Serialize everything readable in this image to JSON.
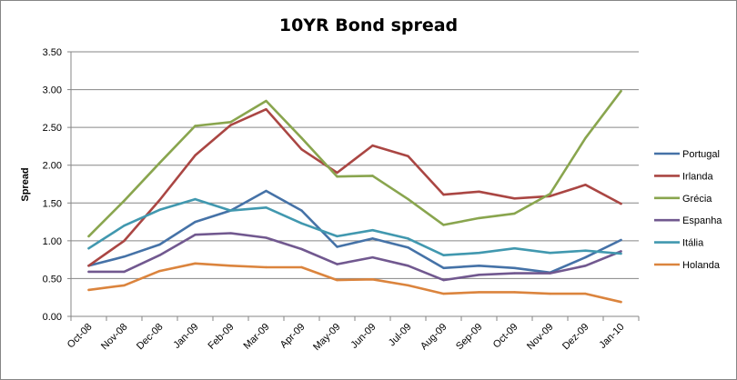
{
  "chart_data": {
    "type": "line",
    "title": "10YR Bond spread",
    "xlabel": "",
    "ylabel": "Spread",
    "ylim": [
      0,
      3.5
    ],
    "yticks": [
      "0.00",
      "0.50",
      "1.00",
      "1.50",
      "2.00",
      "2.50",
      "3.00",
      "3.50"
    ],
    "grid": true,
    "legend": "right",
    "categories": [
      "Oct-08",
      "Nov-08",
      "Dec-08",
      "Jan-09",
      "Feb-09",
      "Mar-09",
      "Apr-09",
      "May-09",
      "Jun-09",
      "Jul-09",
      "Aug-09",
      "Sep-09",
      "Oct-09",
      "Nov-09",
      "Dez-09",
      "Jan-10"
    ],
    "series": [
      {
        "name": "Portugal",
        "color": "#4572A7",
        "values": [
          0.67,
          0.79,
          0.95,
          1.25,
          1.4,
          1.66,
          1.4,
          0.92,
          1.03,
          0.91,
          0.64,
          0.67,
          0.64,
          0.58,
          0.78,
          1.01
        ]
      },
      {
        "name": "Irlanda",
        "color": "#AA4643",
        "values": [
          0.67,
          1.0,
          1.54,
          2.13,
          2.53,
          2.74,
          2.21,
          1.9,
          2.26,
          2.12,
          1.61,
          1.65,
          1.56,
          1.59,
          1.74,
          1.49
        ]
      },
      {
        "name": "Grécia",
        "color": "#89A54E",
        "values": [
          1.06,
          1.53,
          2.03,
          2.52,
          2.57,
          2.85,
          2.36,
          1.85,
          1.86,
          1.55,
          1.21,
          1.3,
          1.36,
          1.62,
          2.36,
          2.98
        ]
      },
      {
        "name": "Espanha",
        "color": "#71588F",
        "values": [
          0.59,
          0.59,
          0.81,
          1.08,
          1.1,
          1.04,
          0.89,
          0.69,
          0.78,
          0.67,
          0.48,
          0.55,
          0.57,
          0.57,
          0.67,
          0.86
        ]
      },
      {
        "name": "Itália",
        "color": "#4198AF",
        "values": [
          0.9,
          1.2,
          1.41,
          1.55,
          1.4,
          1.44,
          1.23,
          1.06,
          1.14,
          1.03,
          0.81,
          0.84,
          0.9,
          0.84,
          0.87,
          0.83
        ]
      },
      {
        "name": "Holanda",
        "color": "#DB843D",
        "values": [
          0.35,
          0.41,
          0.6,
          0.7,
          0.67,
          0.65,
          0.65,
          0.48,
          0.49,
          0.41,
          0.3,
          0.32,
          0.32,
          0.3,
          0.3,
          0.19
        ]
      }
    ]
  }
}
